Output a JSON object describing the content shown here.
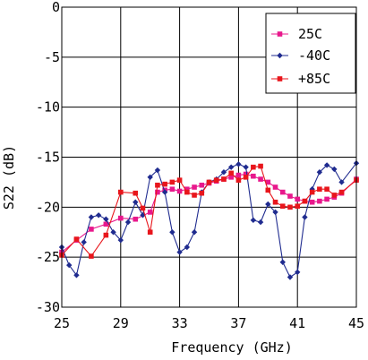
{
  "chart_data": {
    "type": "line",
    "title": "",
    "xlabel": "Frequency (GHz)",
    "ylabel": "S22 (dB)",
    "xlim": [
      25,
      45
    ],
    "ylim": [
      -30,
      0
    ],
    "xticks": [
      25,
      29,
      33,
      37,
      41,
      45
    ],
    "yticks": [
      0,
      -5,
      -10,
      -15,
      -20,
      -25,
      -30
    ],
    "xtick_labels": [
      "25",
      "29",
      "33",
      "37",
      "41",
      "45"
    ],
    "ytick_labels": [
      "0",
      "-5",
      "-10",
      "-15",
      "-20",
      "-25",
      "-30"
    ],
    "grid": true,
    "legend_position": "top-right",
    "series": [
      {
        "name": "25C",
        "color": "#e8188c",
        "marker": "square",
        "x": [
          25,
          26,
          27,
          28,
          29,
          30,
          31,
          31.5,
          32,
          32.5,
          33,
          33.5,
          34,
          34.5,
          35,
          35.5,
          36,
          36.5,
          37,
          37.5,
          38,
          38.5,
          39,
          39.5,
          40,
          40.5,
          41,
          41.5,
          42,
          42.5,
          43,
          43.5,
          44,
          45
        ],
        "y": [
          -24.5,
          -23.3,
          -22.2,
          -21.7,
          -21.1,
          -21.2,
          -20.5,
          -18.5,
          -18.3,
          -18.2,
          -18.4,
          -18.2,
          -18.0,
          -17.8,
          -17.6,
          -17.4,
          -17.2,
          -17.0,
          -16.8,
          -16.7,
          -16.9,
          -17.2,
          -17.5,
          -18.0,
          -18.5,
          -18.9,
          -19.2,
          -19.4,
          -19.5,
          -19.4,
          -19.2,
          -19.0,
          -18.6,
          -17.2
        ]
      },
      {
        "name": "-40C",
        "color": "#1f2b8f",
        "marker": "diamond",
        "x": [
          25,
          25.5,
          26,
          26.5,
          27,
          27.5,
          28,
          28.5,
          29,
          29.5,
          30,
          30.5,
          31,
          31.5,
          32,
          32.5,
          33,
          33.5,
          34,
          34.5,
          35,
          35.5,
          36,
          36.5,
          37,
          37.5,
          38,
          38.5,
          39,
          39.5,
          40,
          40.5,
          41,
          41.5,
          42,
          42.5,
          43,
          43.5,
          44,
          45
        ],
        "y": [
          -24.0,
          -25.8,
          -26.8,
          -23.5,
          -21.0,
          -20.8,
          -21.2,
          -22.5,
          -23.3,
          -21.5,
          -19.5,
          -20.8,
          -17.0,
          -16.3,
          -18.5,
          -22.5,
          -24.5,
          -24.0,
          -22.5,
          -18.5,
          -17.5,
          -17.2,
          -16.5,
          -16.0,
          -15.7,
          -16.0,
          -21.3,
          -21.5,
          -19.7,
          -20.5,
          -25.5,
          -27.0,
          -26.5,
          -21.0,
          -18.2,
          -16.5,
          -15.8,
          -16.2,
          -17.5,
          -15.6
        ]
      },
      {
        "name": "+85C",
        "color": "#e8161c",
        "marker": "square",
        "x": [
          25,
          26,
          27,
          28,
          29,
          30,
          30.5,
          31,
          31.5,
          32,
          32.5,
          33,
          33.5,
          34,
          34.5,
          35,
          35.5,
          36,
          36.5,
          37,
          37.5,
          38,
          38.5,
          39,
          39.5,
          40,
          40.5,
          41,
          41.5,
          42,
          42.5,
          43,
          43.5,
          44,
          45
        ],
        "y": [
          -24.8,
          -23.2,
          -24.9,
          -22.8,
          -18.5,
          -18.6,
          -20.1,
          -22.5,
          -17.8,
          -17.7,
          -17.5,
          -17.3,
          -18.5,
          -18.8,
          -18.6,
          -17.5,
          -17.3,
          -17.2,
          -16.6,
          -17.3,
          -17.0,
          -16.0,
          -15.9,
          -18.3,
          -19.5,
          -19.9,
          -20.0,
          -19.9,
          -19.4,
          -18.5,
          -18.2,
          -18.2,
          -18.8,
          -18.5,
          -17.3
        ]
      }
    ]
  }
}
